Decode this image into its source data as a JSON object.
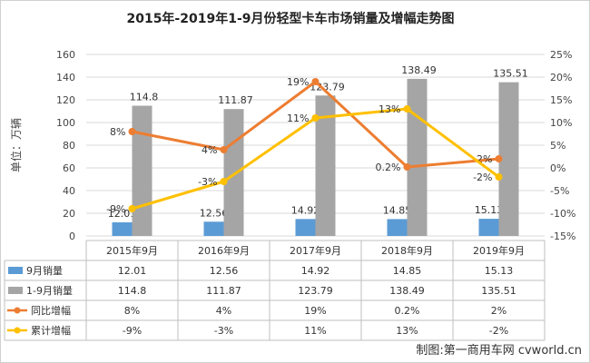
{
  "chart_data": {
    "type": "bar",
    "title": "2015年-2019年1-9月份轻型卡车市场销量及增幅走势图",
    "ylabel": "单位：万辆",
    "categories": [
      "2015年9月",
      "2016年9月",
      "2017年9月",
      "2018年9月",
      "2019年9月"
    ],
    "ylim": [
      0,
      160
    ],
    "yticks": [
      "0",
      "20",
      "40",
      "60",
      "80",
      "100",
      "120",
      "140",
      "160"
    ],
    "y2lim": [
      -15,
      25
    ],
    "y2ticks": [
      "-15%",
      "-10%",
      "-5%",
      "0%",
      "5%",
      "10%",
      "15%",
      "20%",
      "25%"
    ],
    "series": [
      {
        "name": "9月销量",
        "type": "bar",
        "color": "#5b9bd5",
        "values": [
          12.01,
          12.56,
          14.92,
          14.85,
          15.13
        ],
        "labels": [
          "12.01",
          "12.56",
          "14.92",
          "14.85",
          "15.13"
        ]
      },
      {
        "name": "1-9月销量",
        "type": "bar",
        "color": "#a5a5a5",
        "values": [
          114.8,
          111.87,
          123.79,
          138.49,
          135.51
        ],
        "labels": [
          "114.8",
          "111.87",
          "123.79",
          "138.49",
          "135.51"
        ]
      },
      {
        "name": "同比增幅",
        "type": "line",
        "axis": "right",
        "color": "#ed7d31",
        "values": [
          8,
          4,
          19,
          0.2,
          2
        ],
        "labels": [
          "8%",
          "4%",
          "19%",
          "0.2%",
          "2%"
        ]
      },
      {
        "name": "累计增幅",
        "type": "line",
        "axis": "right",
        "color": "#ffc000",
        "values": [
          -9,
          -3,
          11,
          13,
          -2
        ],
        "labels": [
          "-9%",
          "-3%",
          "11%",
          "13%",
          "-2%"
        ]
      }
    ],
    "grid": true,
    "legend": "data-table"
  },
  "credit": "制图:第一商用车网 cvworld.cn"
}
